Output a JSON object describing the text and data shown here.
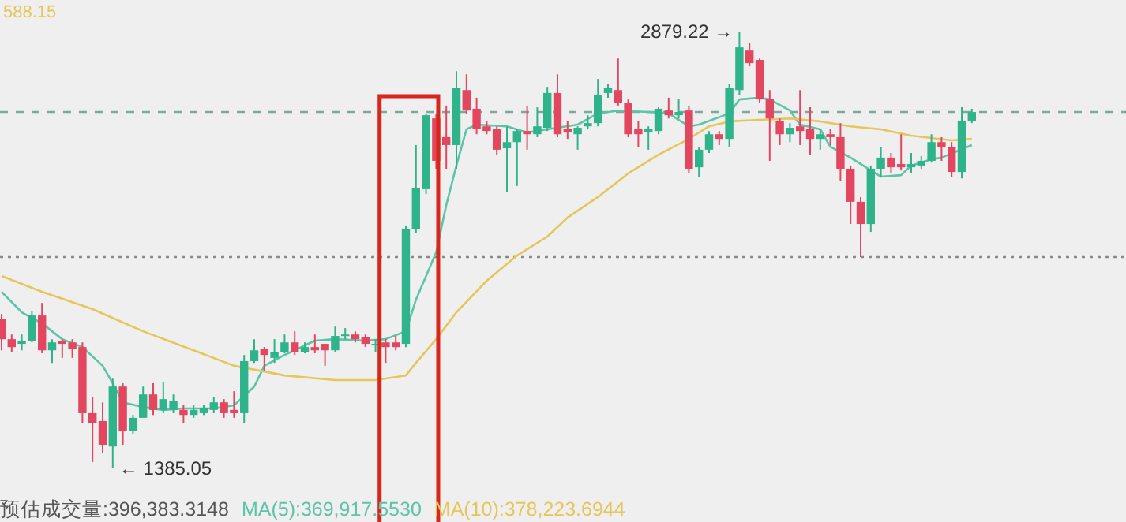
{
  "chart_data": {
    "type": "candlestick",
    "categories": [
      null,
      null,
      null,
      null,
      null,
      null,
      null,
      null,
      null,
      null,
      null,
      null,
      null,
      null,
      null,
      null,
      null,
      null,
      null,
      null,
      null,
      null,
      null,
      null,
      null,
      null,
      null,
      null,
      null,
      null,
      null,
      null,
      null,
      null,
      null,
      null,
      null,
      null,
      null,
      null,
      null,
      null,
      null,
      null,
      null,
      null,
      null,
      null,
      null,
      null,
      null,
      null,
      null,
      null,
      null,
      null,
      null,
      null,
      null,
      null,
      null,
      null,
      null,
      null,
      null,
      null,
      null,
      null,
      null,
      null,
      null,
      null,
      null,
      null,
      null,
      null,
      null,
      null,
      null,
      null,
      null,
      null,
      null,
      null,
      null,
      null,
      null,
      null,
      null,
      null,
      null,
      null,
      null,
      null,
      null,
      null,
      null
    ],
    "ohlc": [
      [
        1897,
        1914,
        1789,
        1827
      ],
      [
        1827,
        1843,
        1784,
        1800
      ],
      [
        1811,
        1843,
        1789,
        1822
      ],
      [
        1822,
        1924,
        1816,
        1908
      ],
      [
        1908,
        1951,
        1779,
        1789
      ],
      [
        1789,
        1827,
        1746,
        1816
      ],
      [
        1822,
        1827,
        1763,
        1811
      ],
      [
        1816,
        1827,
        1763,
        1795
      ],
      [
        1800,
        1816,
        1541,
        1574
      ],
      [
        1574,
        1628,
        1407,
        1541
      ],
      [
        1547,
        1611,
        1439,
        1466
      ],
      [
        1460,
        1692,
        1385.05,
        1665
      ],
      [
        1665,
        1676,
        1466,
        1514
      ],
      [
        1514,
        1568,
        1504,
        1558
      ],
      [
        1558,
        1665,
        1558,
        1638
      ],
      [
        1638,
        1676,
        1568,
        1585
      ],
      [
        1585,
        1682,
        1574,
        1622
      ],
      [
        1585,
        1638,
        1574,
        1617
      ],
      [
        1585,
        1601,
        1541,
        1568
      ],
      [
        1568,
        1601,
        1558,
        1585
      ],
      [
        1574,
        1601,
        1568,
        1590
      ],
      [
        1585,
        1628,
        1574,
        1611
      ],
      [
        1611,
        1622,
        1558,
        1574
      ],
      [
        1585,
        1649,
        1558,
        1574
      ],
      [
        1574,
        1773,
        1541,
        1752
      ],
      [
        1752,
        1827,
        1746,
        1789
      ],
      [
        1795,
        1800,
        1719,
        1773
      ],
      [
        1763,
        1827,
        1746,
        1784
      ],
      [
        1784,
        1843,
        1779,
        1816
      ],
      [
        1816,
        1854,
        1773,
        1784
      ],
      [
        1784,
        1816,
        1779,
        1800
      ],
      [
        1800,
        1843,
        1779,
        1789
      ],
      [
        1811,
        1811,
        1736,
        1789
      ],
      [
        1789,
        1870,
        1784,
        1838
      ],
      [
        1838,
        1865,
        1827,
        1843
      ],
      [
        1843,
        1854,
        1816,
        1827
      ],
      [
        1833,
        1843,
        1800,
        1811
      ],
      [
        1806,
        1827,
        1784,
        1811
      ],
      [
        1816,
        1827,
        1746,
        1800
      ],
      [
        1816,
        1838,
        1789,
        1800
      ],
      [
        1811,
        2216,
        1800,
        2205
      ],
      [
        2205,
        2491,
        2189,
        2345
      ],
      [
        2340,
        2599,
        2324,
        2593
      ],
      [
        2582,
        2599,
        2410,
        2437
      ],
      [
        2518,
        2626,
        2410,
        2491
      ],
      [
        2491,
        2744,
        2410,
        2685
      ],
      [
        2679,
        2733,
        2599,
        2609
      ],
      [
        2615,
        2653,
        2528,
        2545
      ],
      [
        2555,
        2572,
        2528,
        2539
      ],
      [
        2545,
        2555,
        2458,
        2475
      ],
      [
        2480,
        2555,
        2329,
        2501
      ],
      [
        2501,
        2545,
        2351,
        2539
      ],
      [
        2539,
        2626,
        2475,
        2528
      ],
      [
        2528,
        2620,
        2518,
        2555
      ],
      [
        2550,
        2690,
        2539,
        2669
      ],
      [
        2669,
        2733,
        2518,
        2528
      ],
      [
        2545,
        2572,
        2512,
        2534
      ],
      [
        2528,
        2555,
        2475,
        2550
      ],
      [
        2555,
        2593,
        2545,
        2566
      ],
      [
        2566,
        2717,
        2555,
        2663
      ],
      [
        2669,
        2701,
        2653,
        2685
      ],
      [
        2679,
        2787,
        2626,
        2636
      ],
      [
        2636,
        2647,
        2518,
        2528
      ],
      [
        2545,
        2572,
        2485,
        2528
      ],
      [
        2534,
        2555,
        2475,
        2545
      ],
      [
        2539,
        2620,
        2528,
        2615
      ],
      [
        2609,
        2653,
        2582,
        2593
      ],
      [
        2593,
        2647,
        2582,
        2604
      ],
      [
        2609,
        2626,
        2394,
        2410
      ],
      [
        2415,
        2485,
        2383,
        2475
      ],
      [
        2475,
        2539,
        2464,
        2528
      ],
      [
        2528,
        2539,
        2491,
        2512
      ],
      [
        2512,
        2701,
        2485,
        2685
      ],
      [
        2679,
        2879.22,
        2663,
        2825
      ],
      [
        2814,
        2841,
        2760,
        2771
      ],
      [
        2782,
        2787,
        2636,
        2647
      ],
      [
        2647,
        2679,
        2437,
        2582
      ],
      [
        2572,
        2582,
        2491,
        2528
      ],
      [
        2528,
        2566,
        2501,
        2550
      ],
      [
        2555,
        2679,
        2491,
        2539
      ],
      [
        2545,
        2620,
        2458,
        2512
      ],
      [
        2512,
        2545,
        2475,
        2528
      ],
      [
        2528,
        2545,
        2491,
        2518
      ],
      [
        2518,
        2566,
        2367,
        2410
      ],
      [
        2410,
        2421,
        2221,
        2297
      ],
      [
        2297,
        2313,
        2108,
        2221
      ],
      [
        2221,
        2421,
        2194,
        2410
      ],
      [
        2410,
        2485,
        2383,
        2448
      ],
      [
        2448,
        2464,
        2394,
        2415
      ],
      [
        2426,
        2528,
        2404,
        2415
      ],
      [
        2415,
        2464,
        2394,
        2426
      ],
      [
        2421,
        2453,
        2410,
        2437
      ],
      [
        2437,
        2528,
        2431,
        2501
      ],
      [
        2501,
        2518,
        2437,
        2485
      ],
      [
        2485,
        2501,
        2383,
        2399
      ],
      [
        2399,
        2620,
        2377,
        2572
      ],
      [
        2572,
        2615,
        2566,
        2604
      ]
    ],
    "colors": [
      "#e2475f",
      "#e2475f",
      "#2fb38b",
      "#2fb38b",
      "#e2475f",
      "#2fb38b",
      "#e2475f",
      "#e2475f",
      "#e2475f",
      "#e2475f",
      "#e2475f",
      "#2fb38b",
      "#e2475f",
      "#2fb38b",
      "#2fb38b",
      "#e2475f",
      "#2fb38b",
      "#2fb38b",
      "#e2475f",
      "#2fb38b",
      "#2fb38b",
      "#2fb38b",
      "#e2475f",
      "#e2475f",
      "#2fb38b",
      "#2fb38b",
      "#e2475f",
      "#2fb38b",
      "#2fb38b",
      "#e2475f",
      "#2fb38b",
      "#e2475f",
      "#e2475f",
      "#2fb38b",
      "#2fb38b",
      "#e2475f",
      "#e2475f",
      "#2fb38b",
      "#e2475f",
      "#e2475f",
      "#2fb38b",
      "#2fb38b",
      "#2fb38b",
      "#e2475f",
      "#e2475f",
      "#2fb38b",
      "#e2475f",
      "#e2475f",
      "#e2475f",
      "#e2475f",
      "#2fb38b",
      "#2fb38b",
      "#e2475f",
      "#2fb38b",
      "#2fb38b",
      "#e2475f",
      "#e2475f",
      "#2fb38b",
      "#2fb38b",
      "#2fb38b",
      "#2fb38b",
      "#e2475f",
      "#e2475f",
      "#e2475f",
      "#2fb38b",
      "#2fb38b",
      "#e2475f",
      "#2fb38b",
      "#e2475f",
      "#2fb38b",
      "#2fb38b",
      "#e2475f",
      "#2fb38b",
      "#2fb38b",
      "#e2475f",
      "#e2475f",
      "#e2475f",
      "#e2475f",
      "#2fb38b",
      "#e2475f",
      "#e2475f",
      "#2fb38b",
      "#e2475f",
      "#e2475f",
      "#e2475f",
      "#e2475f",
      "#2fb38b",
      "#2fb38b",
      "#e2475f",
      "#e2475f",
      "#2fb38b",
      "#2fb38b",
      "#2fb38b",
      "#e2475f",
      "#e2475f",
      "#2fb38b",
      "#2fb38b"
    ],
    "series": [
      {
        "type": "line",
        "color": "#5cc4a8",
        "values": [
          1989,
          null,
          1919,
          null,
          1881,
          null,
          1827,
          null,
          1800,
          null,
          1736,
          1676,
          1611,
          null,
          1595,
          null,
          1585,
          null,
          1590,
          null,
          null,
          1590,
          null,
          1601,
          null,
          1665,
          1736,
          null,
          1773,
          1789,
          null,
          1822,
          null,
          1827,
          null,
          null,
          1822,
          null,
          1827,
          null,
          1854,
          1962,
          null,
          2124,
          2286,
          2421,
          2545,
          2561,
          null,
          null,
          2555,
          null,
          2534,
          null,
          2545,
          null,
          null,
          2561,
          null,
          2599,
          null,
          2609,
          null,
          null,
          2604,
          null,
          2599,
          null,
          2555,
          2561,
          null,
          null,
          2599,
          2647,
          null,
          2653,
          2647,
          null,
          2609,
          2561,
          null,
          2545,
          2485,
          null,
          2448,
          null,
          2404,
          2383,
          null,
          2388,
          2421,
          null,
          2442,
          2448,
          null,
          null,
          2491
        ]
      },
      {
        "type": "line",
        "color": "#e6c65a",
        "values": [
          2043,
          null,
          null,
          null,
          1989,
          null,
          null,
          null,
          null,
          1930,
          null,
          null,
          null,
          null,
          1854,
          null,
          null,
          null,
          null,
          1789,
          null,
          null,
          null,
          1736,
          null,
          null,
          null,
          null,
          1703,
          null,
          null,
          null,
          null,
          1687,
          null,
          null,
          null,
          1687,
          null,
          null,
          1703,
          1746,
          null,
          1827,
          null,
          1919,
          null,
          null,
          2027,
          null,
          null,
          2113,
          null,
          null,
          2178,
          null,
          2243,
          null,
          null,
          2313,
          null,
          null,
          2394,
          null,
          null,
          2458,
          null,
          null,
          2512,
          null,
          2555,
          null,
          2572,
          null,
          null,
          2577,
          null,
          null,
          2582,
          null,
          null,
          2572,
          null,
          null,
          2555,
          null,
          null,
          2545,
          null,
          null,
          2523,
          null,
          null,
          null,
          2507,
          null,
          2512
        ]
      }
    ],
    "ref_lines": [
      {
        "axis": "y",
        "value": 2604,
        "color": "#7fa8a0",
        "line_style": "dashed"
      },
      {
        "axis": "y",
        "value": 2108,
        "color": "#8a8a8a",
        "line_style": "dotted"
      }
    ],
    "annotations": [
      "2879.22 →",
      "← 1385.05",
      "588.15",
      "预估成交量:396,383.3148",
      "MA(5):369,917.5530",
      "MA(10):378,223.6944"
    ]
  }
}
